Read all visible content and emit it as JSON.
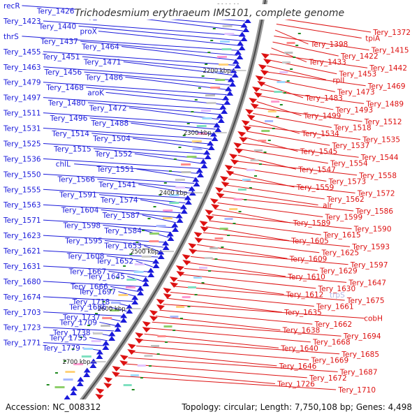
{
  "title": "Trichodesmium erythraeum IMS101, complete genome",
  "footer": {
    "accession": "Accession: NC_008312",
    "summary": "Topology: circular; Length: 7,750,108 bp; Genes: 4,498"
  },
  "colors": {
    "forward": "#1a1adb",
    "reverse": "#dd1111",
    "backbone": "#777777",
    "gc_marker": "#1f8a1f",
    "faint": "#b9b9e6"
  },
  "scale_marks": [
    "2100 kbp",
    "2200 kbp",
    "2300 kbp",
    "2400 kbp",
    "2500 kbp",
    "2600 kbp",
    "2700 kbp"
  ],
  "left_labels": [
    "recR",
    "Tery_1426",
    "Tery_1441",
    "Tery_1423",
    "Tery_1440",
    "proX",
    "thrS",
    "Tery_1437",
    "Tery_1464",
    "Tery_1455",
    "Tery_1451",
    "Tery_1471",
    "Tery_1463",
    "Tery_1456",
    "Tery_1486",
    "Tery_1479",
    "Tery_1468",
    "aroK",
    "Tery_1497",
    "Tery_1480",
    "Tery_1472",
    "Tery_1511",
    "Tery_1496",
    "Tery_1488",
    "Tery_1531",
    "Tery_1514",
    "Tery_1504",
    "Tery_1525",
    "Tery_1515",
    "Tery_1552",
    "Tery_1536",
    "chlL",
    "Tery_1551",
    "Tery_1550",
    "Tery_1566",
    "Tery_1541",
    "Tery_1555",
    "Tery_1591",
    "Tery_1574",
    "Tery_1563",
    "Tery_1604",
    "Tery_1587",
    "Tery_1571",
    "Tery_1598",
    "Tery_1584",
    "Tery_1623",
    "Tery_1595",
    "Tery_1653",
    "Tery_1621",
    "Tery_1608",
    "Tery_1652",
    "Tery_1631",
    "Tery_1667",
    "Tery_1645",
    "Tery_1680",
    "Tery_1666",
    "Tery_1697",
    "Tery_1674",
    "Tery_1718",
    "Tery_1686",
    "Tery_1703",
    "Tery_1737",
    "Tery_1709",
    "Tery_1723",
    "Tery_1738",
    "Tery_1755",
    "Tery_1771",
    "Tery_1779"
  ],
  "right_labels": [
    "Tery_1372",
    "tpiA",
    "Tery_1398",
    "Tery_1415",
    "Tery_1422",
    "Tery_1433",
    "Tery_1442",
    "Tery_1453",
    "rplI",
    "Tery_1469",
    "Tery_1473",
    "Tery_1483",
    "Tery_1489",
    "Tery_1493",
    "Tery_1499",
    "Tery_1512",
    "Tery_1518",
    "Tery_1534",
    "Tery_1535",
    "Tery_1537",
    "Tery_1545",
    "Tery_1544",
    "Tery_1554",
    "Tery_1547",
    "Tery_1558",
    "Tery_1573",
    "Tery_1559",
    "Tery_1572",
    "Tery_1562",
    "alr",
    "Tery_1586",
    "Tery_1599",
    "Tery_1589",
    "Tery_1590",
    "Tery_1615",
    "Tery_1605",
    "Tery_1593",
    "Tery_1625",
    "Tery_1609",
    "Tery_1597",
    "Tery_1629",
    "Tery_1610",
    "Tery_1647",
    "Tery_1630",
    "Tery_1612",
    "Tery_1675",
    "Tery_1661",
    "Tery_1635",
    "cobH",
    "Tery_1662",
    "Tery_1638",
    "Tery_1694",
    "Tery_1668",
    "Tery_1640",
    "Tery_1685",
    "Tery_1669",
    "Tery_1646",
    "Tery_1687",
    "Tery_1672",
    "Tery_1726",
    "Tery_1710"
  ],
  "faint_labels": [
    "trpS"
  ]
}
